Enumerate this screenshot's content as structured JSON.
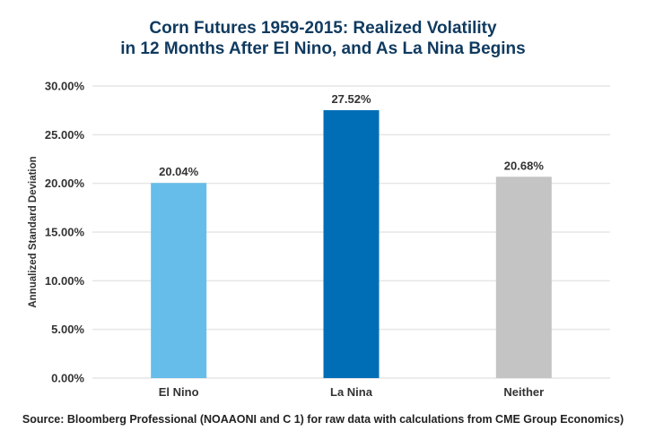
{
  "chart_data": {
    "type": "bar",
    "title": "Corn Futures 1959-2015: Realized Volatility in 12 Months After El Nino, and As La Nina Begins",
    "title_lines": [
      "Corn Futures 1959-2015: Realized Volatility",
      "in 12 Months After El Nino, and As La Nina Begins"
    ],
    "categories": [
      "El Nino",
      "La Nina",
      "Neither"
    ],
    "values": [
      20.04,
      27.52,
      20.68
    ],
    "data_labels": [
      "20.04%",
      "27.52%",
      "20.68%"
    ],
    "colors": [
      "#66bdea",
      "#006eb7",
      "#c4c4c4"
    ],
    "xlabel": "",
    "ylabel": "Annualized Standard Deviation",
    "ylim": [
      0,
      30
    ],
    "yticks": [
      0,
      5,
      10,
      15,
      20,
      25,
      30
    ],
    "ytick_labels": [
      "0.00%",
      "5.00%",
      "10.00%",
      "15.00%",
      "20.00%",
      "25.00%",
      "30.00%"
    ],
    "grid": true,
    "legend": "none",
    "source": "Source: Bloomberg Professional (NOAAONI and C 1) for raw data with calculations from CME Group Economics)"
  }
}
